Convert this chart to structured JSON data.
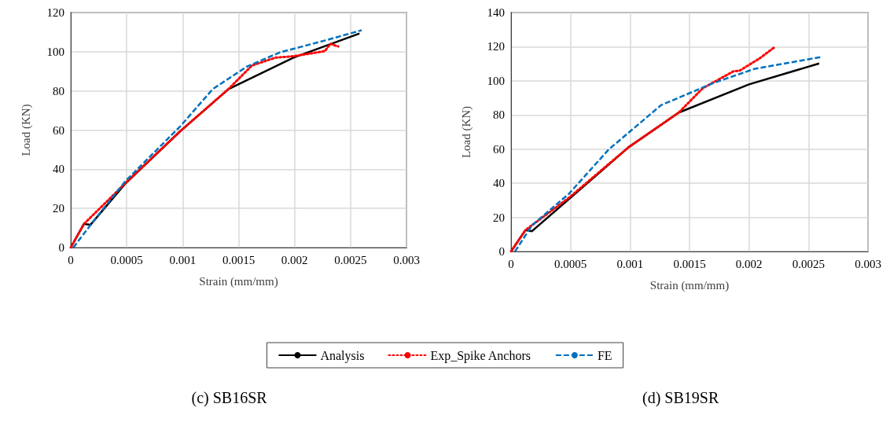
{
  "chart_data": [
    {
      "type": "line",
      "xlabel": "Strain (mm/mm)",
      "ylabel": "Load (KN)",
      "xlim": [
        0,
        0.003
      ],
      "xticks": [
        0,
        0.0005,
        0.001,
        0.0015,
        0.002,
        0.0025,
        0.003
      ],
      "ylim": [
        0,
        120
      ],
      "yticks": [
        0,
        20,
        40,
        60,
        80,
        100,
        120
      ],
      "grid": true,
      "legend": "bottom",
      "marker": "none",
      "annotations": [
        "(c) SB16SR"
      ],
      "series": [
        {
          "name": "Analysis",
          "color": "#000000",
          "line_style": "solid",
          "x": [
            0,
            0.000117,
            0.000176,
            0.00049,
            0.00098,
            0.00141,
            0.00199,
            0.00258
          ],
          "values": [
            0,
            12,
            11.6,
            32.8,
            59.5,
            80.9,
            97,
            109.3
          ]
        },
        {
          "name": "Exp_Spike Anchors",
          "color": "#ff0000",
          "line_style": "dotted",
          "x": [
            0,
            0.000117,
            0.00049,
            0.00098,
            0.00141,
            0.00162,
            0.00183,
            0.00199,
            0.00227,
            0.00232,
            0.00239
          ],
          "values": [
            0,
            12,
            33,
            59.5,
            81,
            93,
            97,
            97.7,
            100.3,
            104,
            102.7
          ]
        },
        {
          "name": "FE",
          "color": "#0070c0",
          "line_style": "dashed",
          "x": [
            2.3e-05,
            0.00021,
            0.00049,
            0.00098,
            0.00127,
            0.00157,
            0.00187,
            0.00227,
            0.0026
          ],
          "values": [
            0,
            14,
            34,
            62,
            81,
            92.3,
            99.7,
            105.7,
            111
          ]
        }
      ]
    },
    {
      "type": "line",
      "xlabel": "Strain (mm/mm)",
      "ylabel": "Load (KN)",
      "xlim": [
        0,
        0.003
      ],
      "xticks": [
        0,
        0.0005,
        0.001,
        0.0015,
        0.002,
        0.0025,
        0.003
      ],
      "ylim": [
        0,
        140
      ],
      "yticks": [
        0,
        20,
        40,
        60,
        80,
        100,
        120,
        140
      ],
      "grid": true,
      "marker": "none",
      "annotations": [
        "(d) SB19SR"
      ],
      "series": [
        {
          "color": "#000000",
          "line_style": "solid",
          "x": [
            0,
            0.000121,
            0.000176,
            0.000485,
            0.00099,
            0.00141,
            0.002,
            0.00259
          ],
          "values": [
            0,
            12.5,
            11.9,
            30.6,
            61.2,
            81.4,
            97.9,
            110.2
          ]
        },
        {
          "color": "#ff0000",
          "line_style": "dotted",
          "x": [
            0,
            0.000121,
            0.000485,
            0.00099,
            0.00141,
            0.00161,
            0.00187,
            0.00192,
            0.00209,
            0.00222
          ],
          "values": [
            0,
            12.5,
            31.4,
            61.2,
            81.4,
            95.6,
            105.6,
            105.9,
            113.2,
            120
          ]
        },
        {
          "color": "#0070c0",
          "line_style": "dashed",
          "x": [
            3.3e-05,
            0.000176,
            0.000485,
            0.00082,
            0.00126,
            0.0017,
            0.00205,
            0.00261
          ],
          "values": [
            0,
            15.3,
            33.7,
            59.7,
            85.7,
            98.7,
            107.1,
            114
          ]
        }
      ]
    }
  ]
}
